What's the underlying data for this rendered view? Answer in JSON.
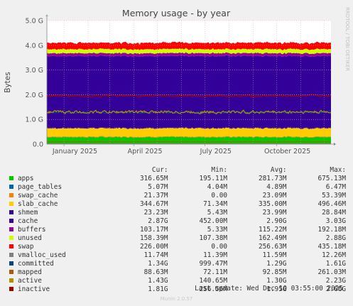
{
  "chart_data": {
    "type": "area",
    "title": "Memory usage - by year",
    "ylabel": "Bytes",
    "side_label": "RRDTOOL / TOBI OETIKER",
    "ylim": [
      0,
      5000000000
    ],
    "y_ticks": [
      {
        "value": 0,
        "label": "0.0"
      },
      {
        "value": 1000000000,
        "label": "1.0 G"
      },
      {
        "value": 2000000000,
        "label": "2.0 G"
      },
      {
        "value": 3000000000,
        "label": "3.0 G"
      },
      {
        "value": 4000000000,
        "label": "4.0 G"
      },
      {
        "value": 5000000000,
        "label": "5.0 G"
      }
    ],
    "x_ticks": [
      "January 2025",
      "April 2025",
      "July 2025",
      "October 2025"
    ],
    "x_start": "2024-12-10",
    "x_end": "2025-12-10",
    "legend_columns": [
      "Cur:",
      "Min:",
      "Avg:",
      "Max:"
    ],
    "series": [
      {
        "name": "apps",
        "color": "#00cc00",
        "cur": "316.65M",
        "min": "195.11M",
        "avg": "281.73M",
        "max": "675.13M",
        "draw": "area",
        "avg_bytes": 281730000
      },
      {
        "name": "page_tables",
        "color": "#0066b3",
        "cur": "5.07M",
        "min": "4.04M",
        "avg": "4.89M",
        "max": "6.47M",
        "draw": "area",
        "avg_bytes": 4890000
      },
      {
        "name": "swap_cache",
        "color": "#ff8000",
        "cur": "21.37M",
        "min": "0.00",
        "avg": "23.09M",
        "max": "53.39M",
        "draw": "area",
        "avg_bytes": 23090000
      },
      {
        "name": "slab_cache",
        "color": "#ffcc00",
        "cur": "344.67M",
        "min": "71.34M",
        "avg": "335.00M",
        "max": "496.46M",
        "draw": "area",
        "avg_bytes": 335000000
      },
      {
        "name": "shmem",
        "color": "#330099",
        "cur": "23.23M",
        "min": "5.43M",
        "avg": "23.99M",
        "max": "28.84M",
        "draw": "area",
        "avg_bytes": 23990000
      },
      {
        "name": "cache",
        "color": "#330099",
        "cur": "2.87G",
        "min": "452.00M",
        "avg": "2.90G",
        "max": "3.03G",
        "draw": "area",
        "avg_bytes": 2900000000
      },
      {
        "name": "buffers",
        "color": "#990099",
        "cur": "103.17M",
        "min": "5.33M",
        "avg": "115.22M",
        "max": "192.18M",
        "draw": "area",
        "avg_bytes": 115220000
      },
      {
        "name": "unused",
        "color": "#ccff00",
        "cur": "158.39M",
        "min": "107.38M",
        "avg": "162.49M",
        "max": "2.88G",
        "draw": "area",
        "avg_bytes": 162490000
      },
      {
        "name": "swap",
        "color": "#ff0000",
        "cur": "226.00M",
        "min": "0.00",
        "avg": "256.63M",
        "max": "435.18M",
        "draw": "area",
        "avg_bytes": 256630000
      },
      {
        "name": "vmalloc_used",
        "color": "#808080",
        "cur": "11.74M",
        "min": "11.39M",
        "avg": "11.59M",
        "max": "12.26M",
        "draw": "line",
        "avg_bytes": 11590000
      },
      {
        "name": "committed",
        "color": "#00487d",
        "cur": "1.34G",
        "min": "999.47M",
        "avg": "1.29G",
        "max": "1.61G",
        "draw": "line",
        "avg_bytes": 1290000000
      },
      {
        "name": "mapped",
        "color": "#b35a00",
        "cur": "88.63M",
        "min": "72.11M",
        "avg": "92.85M",
        "max": "261.03M",
        "draw": "line",
        "avg_bytes": 92850000
      },
      {
        "name": "active",
        "color": "#b38f00",
        "cur": "1.43G",
        "min": "140.65M",
        "avg": "1.30G",
        "max": "2.23G",
        "draw": "line",
        "avg_bytes": 1300000000
      },
      {
        "name": "inactive",
        "color": "#a00000",
        "cur": "1.81G",
        "min": "256.56M",
        "avg": "1.95G",
        "max": "2.66G",
        "draw": "line",
        "avg_bytes": 1950000000
      }
    ],
    "last_update": "Last update: Wed Dec 10 03:55:00 2025",
    "generator": "Munin 2.0.57"
  }
}
